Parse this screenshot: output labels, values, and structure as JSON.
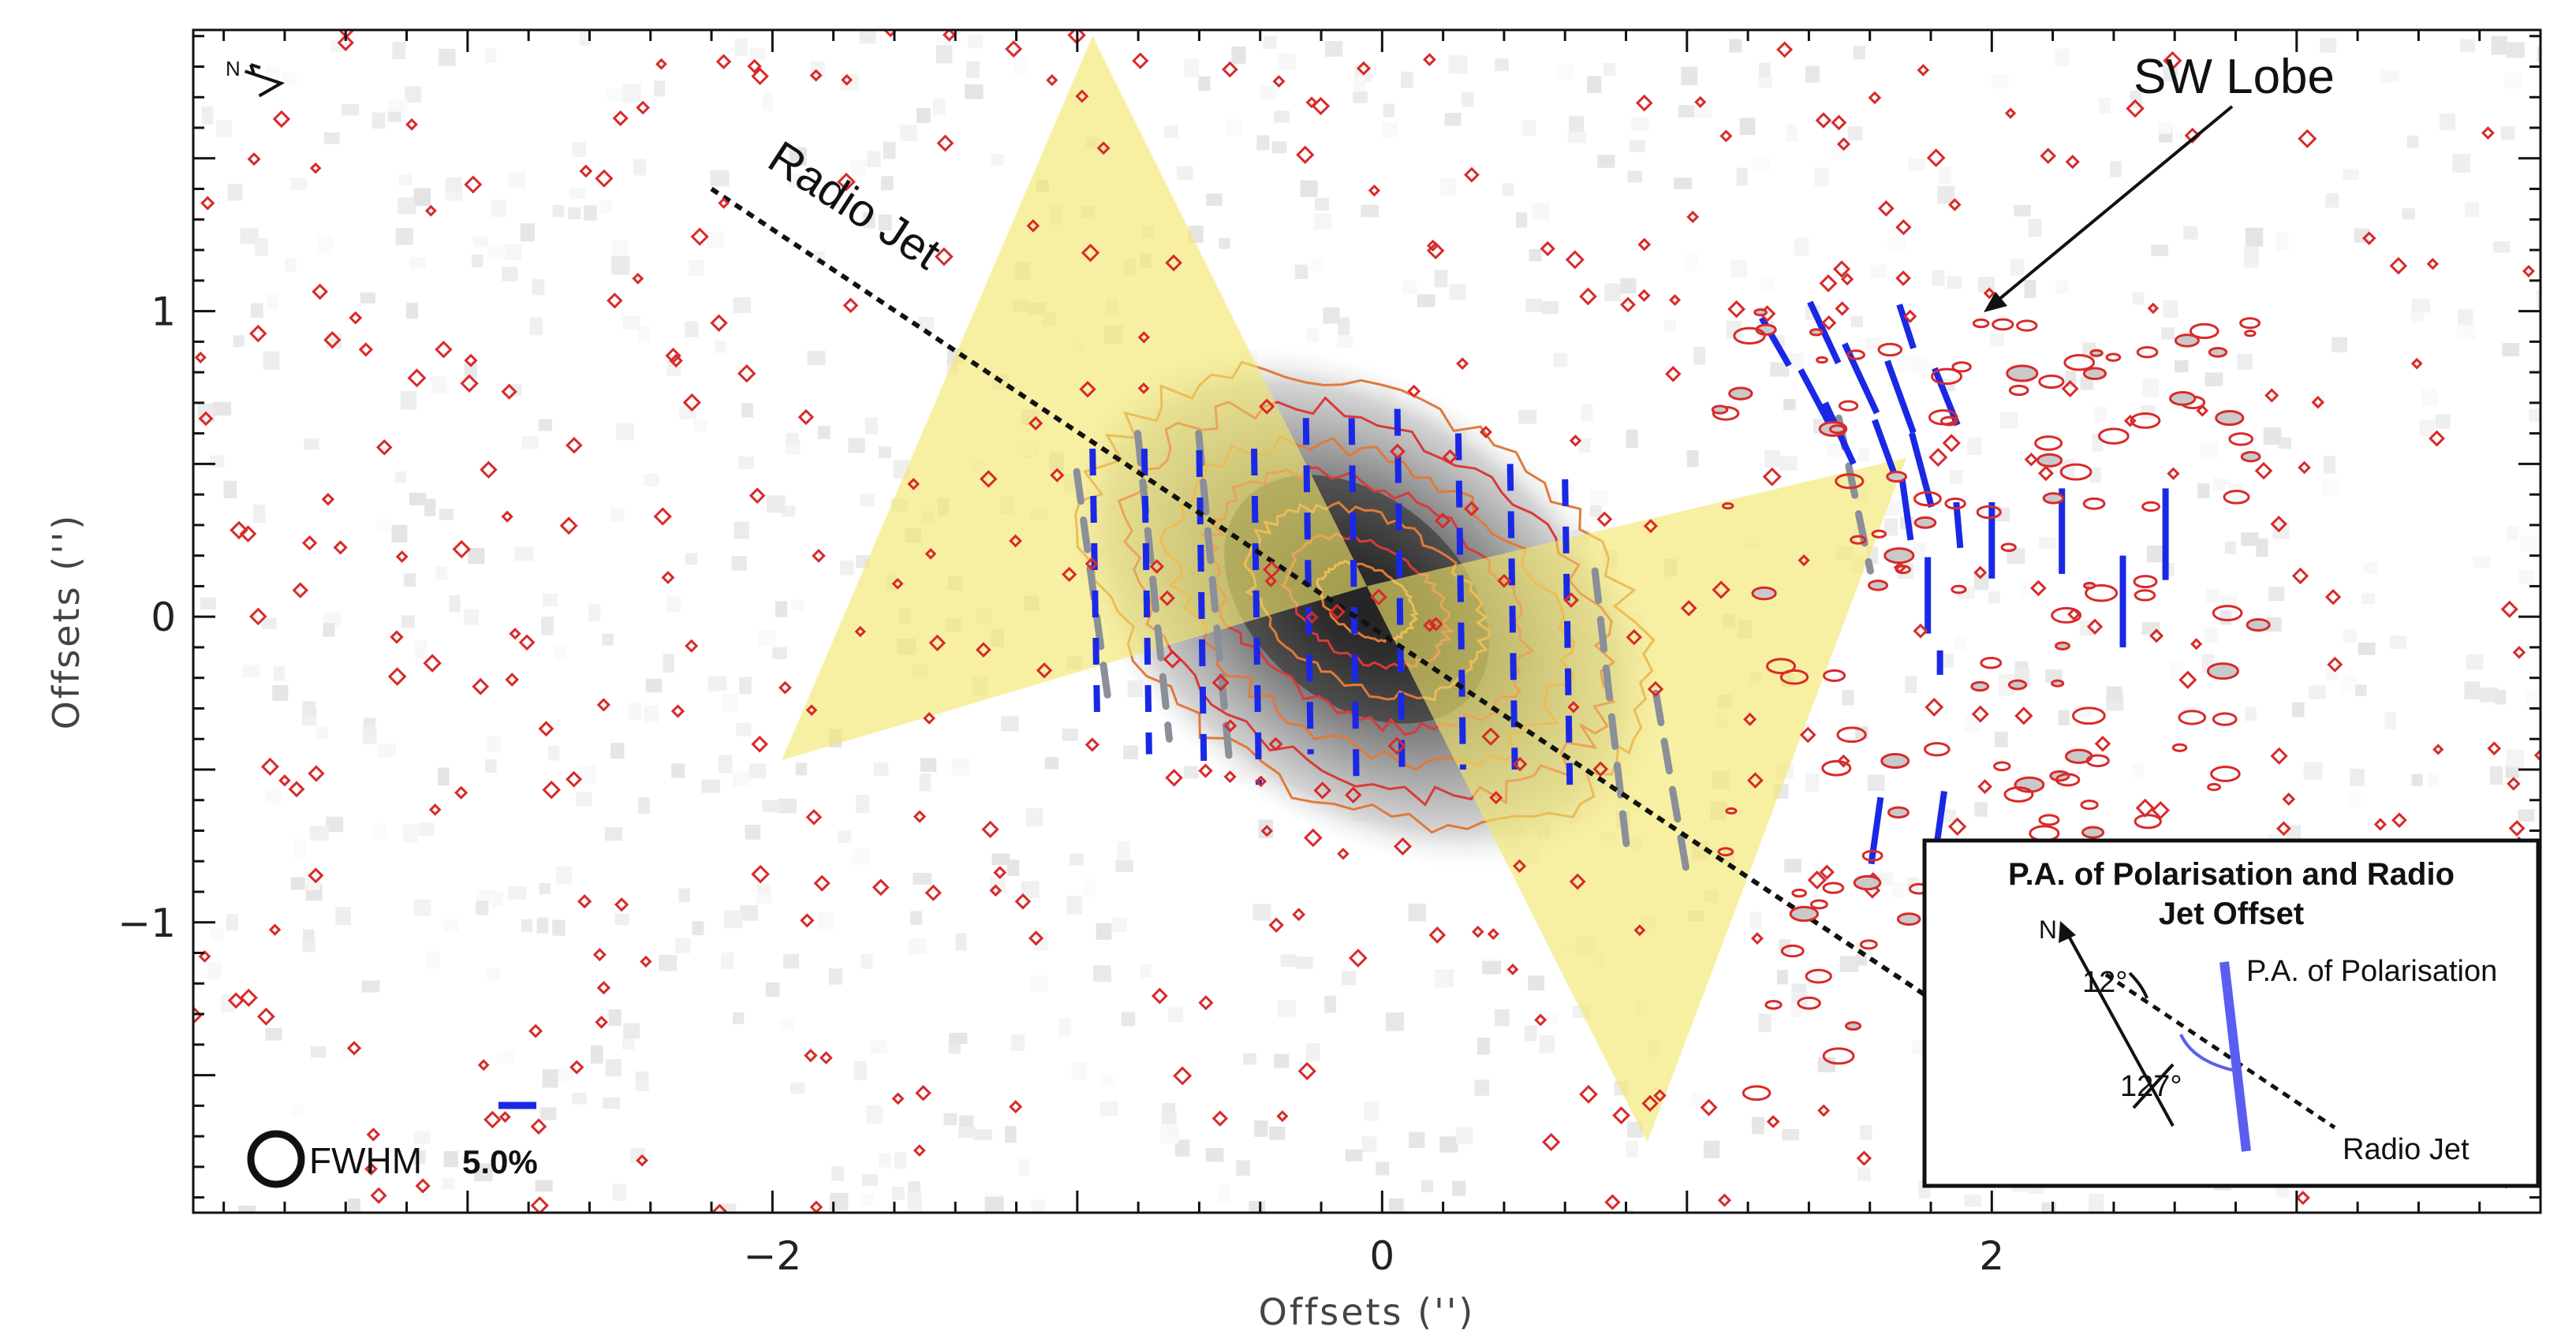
{
  "chart_data": {
    "type": "scatter",
    "xlabel": "Offsets ('')",
    "ylabel": "Offsets ('')",
    "xlim": [
      -3.9,
      3.8
    ],
    "ylim": [
      -1.95,
      1.92
    ],
    "x_ticks": [
      -2,
      0,
      2
    ],
    "x_tick_labels": [
      "−2",
      "0",
      "2"
    ],
    "y_ticks": [
      -1,
      0,
      1
    ],
    "y_tick_labels": [
      "−1",
      "0",
      "1"
    ],
    "north_label": "N",
    "annotations": {
      "radio_jet": "Radio Jet",
      "sw_lobe": "SW Lobe",
      "fwhm": "FWHM",
      "scale_bar": "5.0%"
    },
    "ionisation_cone": {
      "color": "#f2e66a",
      "vertices_cone1": [
        [
          -0.05,
          0.1
        ],
        [
          -0.95,
          1.9
        ],
        [
          -1.97,
          -0.47
        ]
      ],
      "vertices_cone2": [
        [
          -0.05,
          0.1
        ],
        [
          0.87,
          -1.72
        ],
        [
          1.72,
          0.52
        ]
      ]
    },
    "radio_jet_line": [
      [
        -2.2,
        1.4
      ],
      [
        1.8,
        -1.25
      ]
    ],
    "polarisation_vectors_core": [
      {
        "x": -0.95,
        "y": 0.1,
        "len": 0.9
      },
      {
        "x": -0.78,
        "y": 0.05,
        "len": 1.0
      },
      {
        "x": -0.6,
        "y": 0.02,
        "len": 1.05
      },
      {
        "x": -0.42,
        "y": 0.0,
        "len": 1.1
      },
      {
        "x": -0.25,
        "y": 0.1,
        "len": 1.1
      },
      {
        "x": -0.1,
        "y": 0.05,
        "len": 1.2
      },
      {
        "x": 0.05,
        "y": 0.08,
        "len": 1.2
      },
      {
        "x": 0.25,
        "y": 0.05,
        "len": 1.1
      },
      {
        "x": 0.42,
        "y": 0.0,
        "len": 1.0
      },
      {
        "x": 0.6,
        "y": -0.05,
        "len": 1.0
      }
    ],
    "polarisation_vectors_grey": [
      {
        "x": -0.95,
        "y": 0.1,
        "len": 0.75
      },
      {
        "x": -0.75,
        "y": 0.1,
        "len": 1.0
      },
      {
        "x": -0.55,
        "y": 0.05,
        "len": 1.1
      },
      {
        "x": 0.75,
        "y": -0.3,
        "len": 0.9
      },
      {
        "x": 0.95,
        "y": -0.55,
        "len": 0.6
      },
      {
        "x": 1.55,
        "y": 0.4,
        "len": 0.5
      }
    ],
    "polarisation_vectors_lobe": [
      {
        "x": 1.29,
        "y": 0.9,
        "ang": 30,
        "len": 0.18
      },
      {
        "x": 1.45,
        "y": 0.93,
        "ang": 25,
        "len": 0.22
      },
      {
        "x": 1.42,
        "y": 0.72,
        "ang": 28,
        "len": 0.2
      },
      {
        "x": 1.57,
        "y": 0.78,
        "ang": 25,
        "len": 0.25
      },
      {
        "x": 1.7,
        "y": 0.72,
        "ang": 20,
        "len": 0.25
      },
      {
        "x": 1.85,
        "y": 0.72,
        "ang": 22,
        "len": 0.2
      },
      {
        "x": 1.72,
        "y": 0.95,
        "ang": 18,
        "len": 0.15
      },
      {
        "x": 1.5,
        "y": 0.6,
        "ang": 25,
        "len": 0.22
      },
      {
        "x": 1.65,
        "y": 0.55,
        "ang": 20,
        "len": 0.2
      },
      {
        "x": 1.77,
        "y": 0.48,
        "ang": 15,
        "len": 0.25
      },
      {
        "x": 1.72,
        "y": 0.35,
        "ang": 8,
        "len": 0.2
      },
      {
        "x": 1.89,
        "y": 0.3,
        "ang": 5,
        "len": 0.15
      },
      {
        "x": 2.0,
        "y": 0.25,
        "ang": 0,
        "len": 0.25
      },
      {
        "x": 2.23,
        "y": 0.28,
        "ang": 0,
        "len": 0.28
      },
      {
        "x": 2.43,
        "y": 0.05,
        "ang": 0,
        "len": 0.3
      },
      {
        "x": 2.57,
        "y": 0.27,
        "ang": 0,
        "len": 0.3
      },
      {
        "x": 1.79,
        "y": 0.07,
        "ang": 0,
        "len": 0.25
      },
      {
        "x": 1.83,
        "y": -0.15,
        "ang": 0,
        "len": 0.08
      },
      {
        "x": 1.62,
        "y": -0.7,
        "ang": -8,
        "len": 0.22
      },
      {
        "x": 1.83,
        "y": -0.67,
        "ang": -8,
        "len": 0.2
      }
    ],
    "inset": {
      "title_line1": "P.A. of Polarisation and Radio",
      "title_line2": "Jet Offset",
      "north_label": "N",
      "angle_north": "12°",
      "angle_pol": "127°",
      "pol_label": "P.A. of Polarisation",
      "jet_label": "Radio Jet",
      "pol_color": "#5a5ef0"
    }
  }
}
